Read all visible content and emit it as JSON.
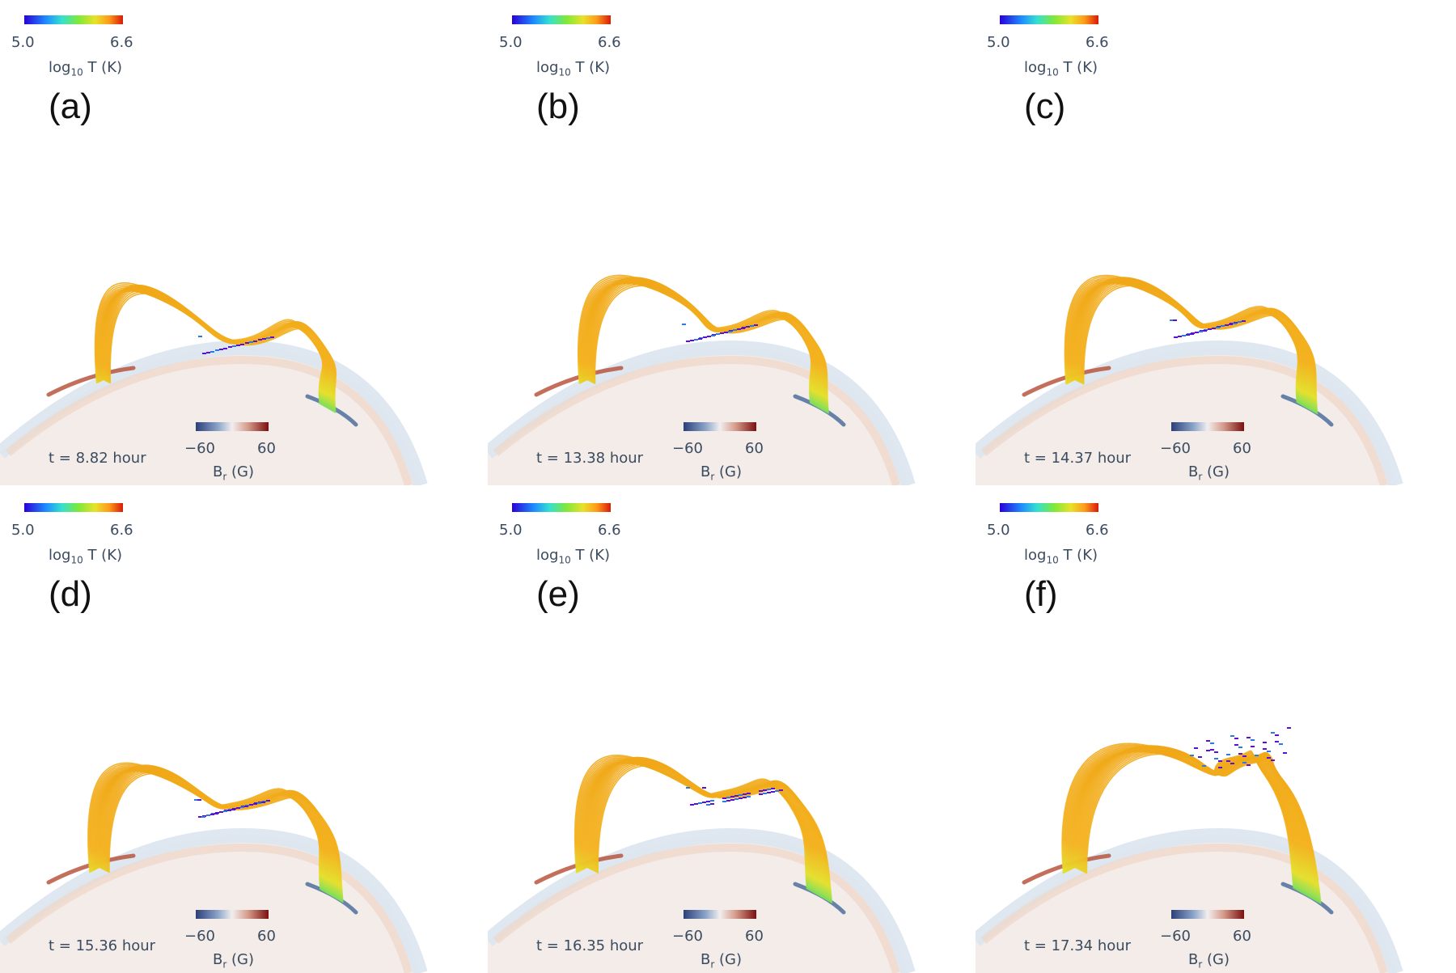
{
  "panels": [
    {
      "label": "(a)",
      "time": "t = 8.82 hour"
    },
    {
      "label": "(b)",
      "time": "t = 13.38 hour"
    },
    {
      "label": "(c)",
      "time": "t = 14.37 hour"
    },
    {
      "label": "(d)",
      "time": "t = 15.36 hour"
    },
    {
      "label": "(e)",
      "time": "t = 16.35 hour"
    },
    {
      "label": "(f)",
      "time": "t = 17.34 hour"
    }
  ],
  "temp_colorbar": {
    "min": "5.0",
    "max": "6.6",
    "label_main": "log",
    "label_sub": "10",
    "label_tail": " T (K)"
  },
  "br_colorbar": {
    "min": "−60",
    "max": "60",
    "label_main": "B",
    "label_sub": "r",
    "label_tail": " (G)"
  },
  "colors": {
    "loops": "#f2b21e",
    "hot": "#e8d22a",
    "cool": "#7fe83a",
    "dip": "#5a10d8",
    "sun": "#f4f0ee",
    "limb": "#c9d8e6",
    "positive_patch": "#b04a3a",
    "negative_patch": "#4a6a98"
  }
}
